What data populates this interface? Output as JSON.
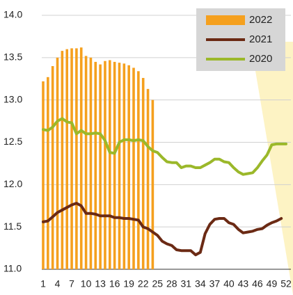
{
  "chart_data": {
    "type": "bar",
    "categories": [
      1,
      null,
      null,
      4,
      null,
      null,
      7,
      null,
      null,
      10,
      null,
      null,
      13,
      null,
      null,
      16,
      null,
      null,
      19,
      null,
      null,
      22,
      null,
      null,
      25,
      null,
      null,
      28,
      null,
      null,
      31,
      null,
      null,
      34,
      null,
      null,
      37,
      null,
      null,
      40,
      null,
      null,
      43,
      null,
      null,
      46,
      null,
      null,
      49,
      null,
      null,
      52
    ],
    "series": [
      {
        "name": "2022",
        "type": "bar",
        "color": "#f5a01e",
        "values": [
          13.22,
          13.27,
          13.4,
          13.5,
          13.58,
          13.6,
          13.61,
          13.61,
          13.62,
          13.52,
          13.5,
          13.45,
          13.42,
          13.46,
          13.47,
          13.45,
          13.44,
          13.43,
          13.41,
          13.38,
          13.34,
          13.26,
          13.13,
          13.0,
          null,
          null,
          null,
          null,
          null,
          null,
          null,
          null,
          null,
          null,
          null,
          null,
          null,
          null,
          null,
          null,
          null,
          null,
          null,
          null,
          null,
          null,
          null,
          null,
          null,
          null,
          null,
          null
        ]
      },
      {
        "name": "2021",
        "type": "line",
        "color": "#6b2a14",
        "values": [
          11.56,
          11.57,
          11.62,
          11.67,
          11.7,
          11.73,
          11.76,
          11.78,
          11.75,
          11.66,
          11.66,
          11.65,
          11.63,
          11.63,
          11.63,
          11.61,
          11.61,
          11.6,
          11.6,
          11.59,
          11.58,
          11.5,
          11.48,
          11.44,
          11.4,
          11.33,
          11.3,
          11.28,
          11.23,
          11.22,
          11.22,
          11.22,
          11.17,
          11.2,
          11.42,
          11.53,
          11.59,
          11.6,
          11.6,
          11.55,
          11.53,
          11.47,
          11.43,
          11.44,
          11.45,
          11.47,
          11.48,
          11.52,
          11.55,
          11.57,
          11.6,
          null
        ]
      },
      {
        "name": "2020",
        "type": "line",
        "color": "#9bb82a",
        "values": [
          12.65,
          12.64,
          12.68,
          12.75,
          12.78,
          12.74,
          12.73,
          12.6,
          12.64,
          12.6,
          12.6,
          12.61,
          12.6,
          12.52,
          12.38,
          12.37,
          12.5,
          12.53,
          12.53,
          12.52,
          12.53,
          12.52,
          12.45,
          12.4,
          12.38,
          12.32,
          12.27,
          12.26,
          12.26,
          12.2,
          12.22,
          12.22,
          12.2,
          12.2,
          12.23,
          12.26,
          12.3,
          12.3,
          12.27,
          12.26,
          12.2,
          12.15,
          12.12,
          12.13,
          12.14,
          12.2,
          12.28,
          12.35,
          12.47,
          12.48,
          12.48,
          12.48
        ]
      }
    ],
    "ylim": [
      11.0,
      14.0
    ],
    "yticks": [
      {
        "value": 11.0,
        "label": "11.0"
      },
      11.5,
      {
        "value": 12.0,
        "label": "12.0"
      },
      12.5,
      {
        "value": 13.0,
        "label": "13.0"
      },
      13.5,
      {
        "value": 14.0,
        "label": "14.0"
      }
    ],
    "grid": true,
    "legend": "upper right"
  }
}
